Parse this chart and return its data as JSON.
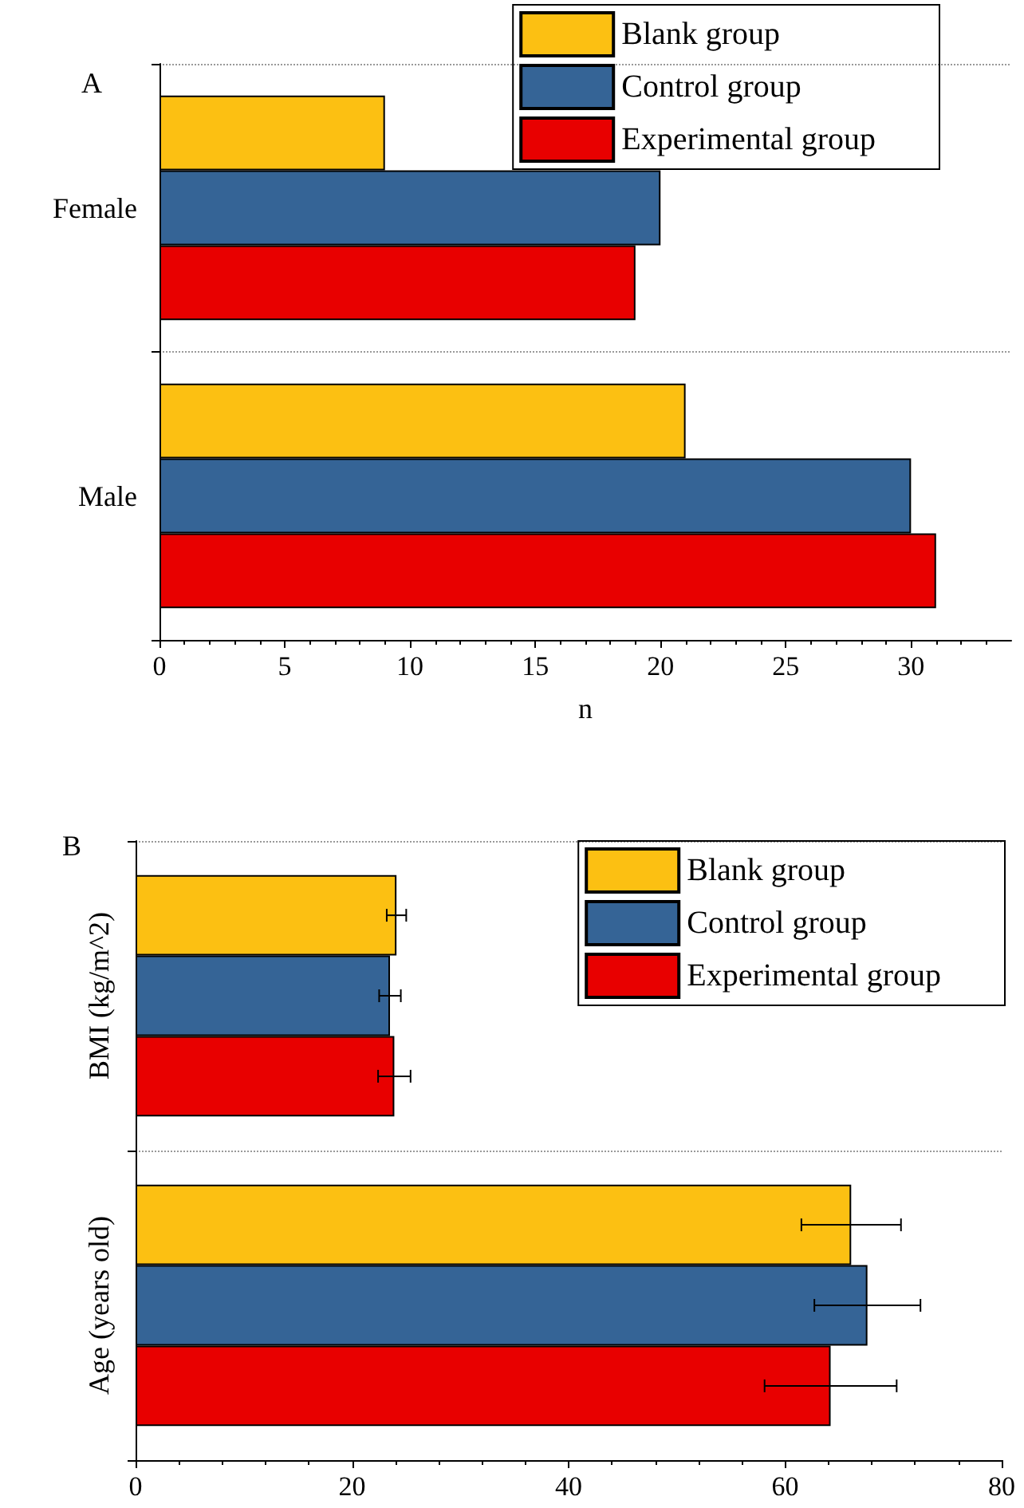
{
  "chart_data": [
    {
      "type": "bar",
      "title": "A",
      "orientation": "horizontal",
      "xlabel": "n",
      "categories": [
        "Female",
        "Male"
      ],
      "series": [
        {
          "name": "Blank group",
          "color": "#fcc012",
          "values": [
            9,
            21
          ]
        },
        {
          "name": "Control group",
          "color": "#356496",
          "values": [
            20,
            30
          ]
        },
        {
          "name": "Experimental group",
          "color": "#e80000",
          "values": [
            19,
            31
          ]
        }
      ],
      "xlim": [
        0,
        34
      ],
      "xticks": [
        0,
        5,
        10,
        15,
        20,
        25,
        30
      ],
      "grid": "y",
      "legend": "top right"
    },
    {
      "type": "bar",
      "title": "B",
      "orientation": "horizontal",
      "categories": [
        "BMI (kg/m^2)",
        "Age (years old)"
      ],
      "series": [
        {
          "name": "Blank group",
          "color": "#fcc012",
          "values": [
            24.1,
            66.1
          ],
          "errors": [
            0.9,
            4.6
          ]
        },
        {
          "name": "Control group",
          "color": "#356496",
          "values": [
            23.5,
            67.6
          ],
          "errors": [
            1.0,
            4.9
          ]
        },
        {
          "name": "Experimental group",
          "color": "#e80000",
          "values": [
            23.9,
            64.2
          ],
          "errors": [
            1.5,
            6.1
          ]
        }
      ],
      "xlim": [
        0,
        80
      ],
      "xticks": [
        0,
        20,
        40,
        60,
        80
      ],
      "grid": "y",
      "legend": "top right"
    }
  ]
}
